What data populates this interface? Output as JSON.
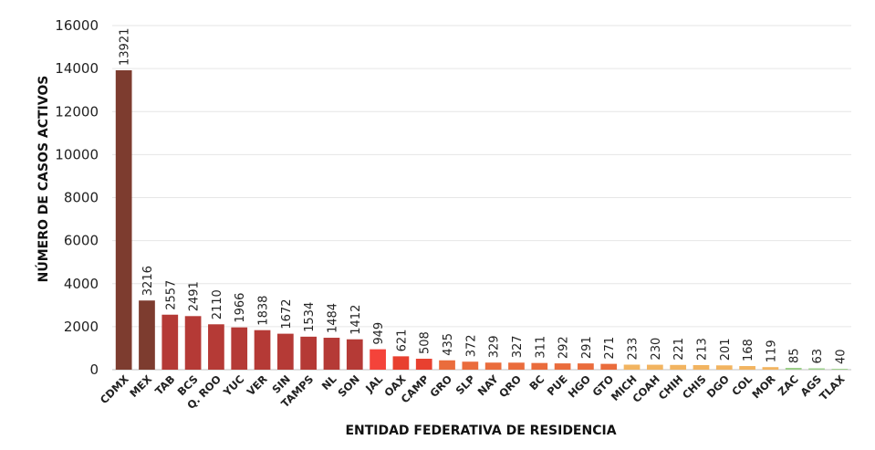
{
  "chart_data": {
    "type": "bar",
    "xlabel": "ENTIDAD FEDERATIVA DE RESIDENCIA",
    "ylabel": "NÚMERO DE CASOS ACTIVOS",
    "ylim": [
      0,
      16000
    ],
    "yticks": [
      0,
      2000,
      4000,
      6000,
      8000,
      10000,
      12000,
      14000,
      16000
    ],
    "grid": true,
    "categories": [
      "CDMX",
      "MEX",
      "TAB",
      "BCS",
      "Q. ROO",
      "YUC",
      "VER",
      "SIN",
      "TAMPS",
      "NL",
      "SON",
      "JAL",
      "OAX",
      "CAMP",
      "GRO",
      "SLP",
      "NAY",
      "QRO",
      "BC",
      "PUE",
      "HGO",
      "GTO",
      "MICH",
      "COAH",
      "CHIH",
      "CHIS",
      "DGO",
      "COL",
      "MOR",
      "ZAC",
      "AGS",
      "TLAX"
    ],
    "values": [
      13921,
      3216,
      2557,
      2491,
      2110,
      1966,
      1838,
      1672,
      1534,
      1484,
      1412,
      949,
      621,
      508,
      435,
      372,
      329,
      327,
      311,
      292,
      291,
      271,
      233,
      230,
      221,
      213,
      201,
      168,
      119,
      85,
      63,
      40
    ],
    "colors": [
      "#7d3c2f",
      "#7d3c2f",
      "#b53a36",
      "#b53a36",
      "#b53a36",
      "#b53a36",
      "#b53a36",
      "#b53a36",
      "#b53a36",
      "#b53a36",
      "#b53a36",
      "#f4433a",
      "#e8402f",
      "#e8402f",
      "#ea6c3c",
      "#ea6c3c",
      "#ea6c3c",
      "#ea6c3c",
      "#ea6c3c",
      "#ea6c3c",
      "#ea6c3c",
      "#ea6c3c",
      "#f2b460",
      "#f2b460",
      "#f2b460",
      "#f2b460",
      "#f2b460",
      "#f2b460",
      "#f2b460",
      "#9ccf8a",
      "#9ccf8a",
      "#9ccf8a"
    ]
  }
}
